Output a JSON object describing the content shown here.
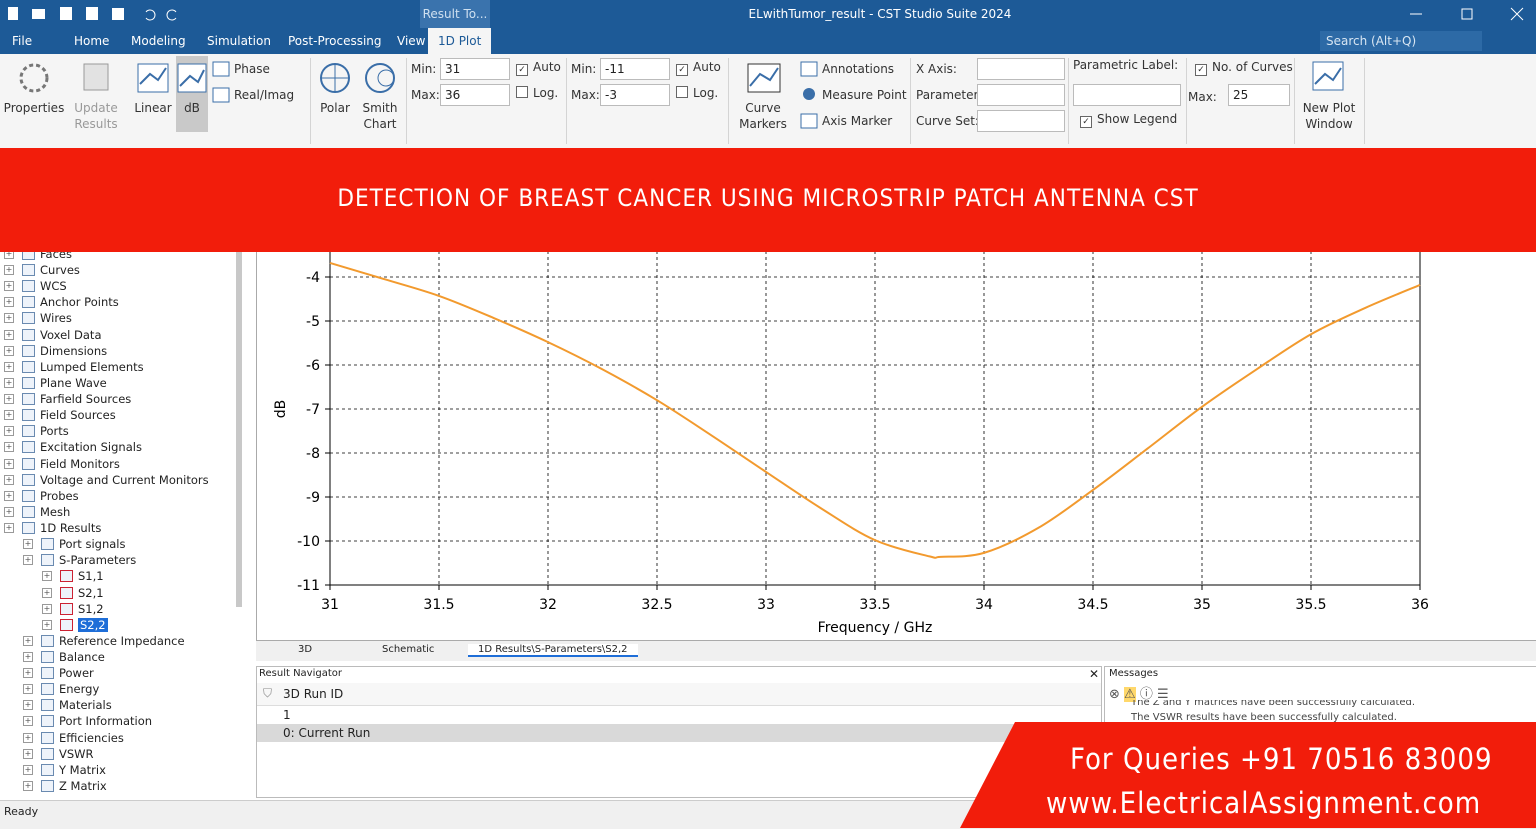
{
  "title_bar": {
    "context_tab": "Result To...",
    "title": "ELwithTumor_result - CST Studio Suite 2024"
  },
  "menu": {
    "tabs": [
      "File",
      "Home",
      "Modeling",
      "Simulation",
      "Post-Processing",
      "View",
      "1D Plot"
    ],
    "search": "Search (Alt+Q)"
  },
  "ribbon": {
    "properties": "Properties",
    "update_results": "Update Results",
    "linear": "Linear",
    "db": "dB",
    "phase": "Phase",
    "real_imag": "Real/Imag",
    "polar": "Polar",
    "smith_chart": "Smith Chart",
    "x_axis": {
      "min_label": "Min:",
      "min": "31",
      "max_label": "Max:",
      "max": "36",
      "auto": "Auto",
      "log": "Log."
    },
    "y_axis": {
      "min_label": "Min:",
      "min": "-11",
      "max_label": "Max:",
      "max": "-3",
      "auto": "Auto",
      "log": "Log."
    },
    "curve_markers": "Curve Markers",
    "annotations": "Annotations",
    "measure_point": "Measure Point",
    "axis_marker": "Axis Marker",
    "x_axis_label": "X Axis:",
    "parameter": "Parameter:",
    "curve_set": "Curve Set:",
    "parametric_label": "Parametric Label:",
    "show_legend": "Show Legend",
    "no_of_curves": "No. of Curves",
    "max_label": "Max:",
    "max": "25",
    "new_plot_window": "New Plot Window"
  },
  "banner": "DETECTION OF BREAST CANCER USING MICROSTRIP PATCH ANTENNA CST",
  "tree": [
    "Faces",
    "Curves",
    "WCS",
    "Anchor Points",
    "Wires",
    "Voxel Data",
    "Dimensions",
    "Lumped Elements",
    "Plane Wave",
    "Farfield Sources",
    "Field Sources",
    "Ports",
    "Excitation Signals",
    "Field Monitors",
    "Voltage and Current Monitors",
    "Probes",
    "Mesh",
    "1D Results",
    "Port signals",
    "S-Parameters",
    "S1,1",
    "S2,1",
    "S1,2",
    "S2,2",
    "Reference Impedance",
    "Balance",
    "Power",
    "Energy",
    "Materials",
    "Port Information",
    "Efficiencies",
    "VSWR",
    "Y Matrix",
    "Z Matrix"
  ],
  "chart_data": {
    "type": "line",
    "x_label": "Frequency / GHz",
    "y_label": "dB",
    "x": [
      31,
      31.25,
      31.5,
      31.75,
      32,
      32.25,
      32.5,
      32.75,
      33,
      33.25,
      33.5,
      33.75,
      33.8,
      34,
      34.25,
      34.5,
      34.75,
      35,
      35.25,
      35.5,
      35.75,
      36
    ],
    "series": [
      {
        "name": "S2,2",
        "color": "#f29a2e",
        "values": [
          -3.68,
          -4.05,
          -4.43,
          -4.93,
          -5.48,
          -6.1,
          -6.8,
          -7.6,
          -8.43,
          -9.25,
          -9.98,
          -10.35,
          -10.36,
          -10.27,
          -9.7,
          -8.84,
          -7.9,
          -6.95,
          -6.1,
          -5.3,
          -4.7,
          -4.18
        ]
      }
    ],
    "xlim": [
      31,
      36
    ],
    "ylim": [
      -11,
      -3
    ],
    "xticks": [
      31,
      31.5,
      32,
      32.5,
      33,
      33.5,
      34,
      34.5,
      35,
      35.5,
      36
    ],
    "yticks": [
      -11,
      -10,
      -9,
      -8,
      -7,
      -6,
      -5,
      -4
    ],
    "grid": true
  },
  "tabs": [
    "3D",
    "Schematic",
    "1D Results\\S-Parameters\\S2,2"
  ],
  "result_navigator": {
    "title": "Result Navigator",
    "column": "3D Run ID",
    "rows": [
      "1",
      "0: Current Run"
    ]
  },
  "messages": {
    "title": "Messages",
    "lines": [
      "The Z and Y matrices have been successfully calculated.",
      "The VSWR results have been successfully calculated."
    ]
  },
  "overlay": {
    "queries": "For Queries +91 70516 83009",
    "website": "www.ElectricalAssignment.com"
  },
  "status": "Ready"
}
